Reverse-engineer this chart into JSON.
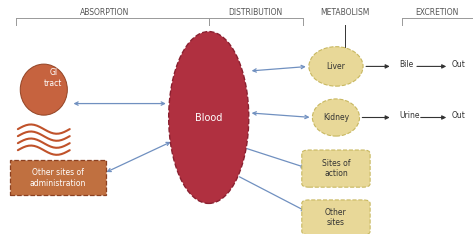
{
  "bg_color": "#ffffff",
  "title_absorption": "ABSORPTION",
  "title_distribution": "DISTRIBUTION",
  "title_metabolism": "METABOLISM",
  "title_excretion": "EXCRETION",
  "blood_color": "#b03040",
  "blood_edge": "#8a2030",
  "blood_text": "Blood",
  "gi_color": "#c0522a",
  "gi_edge": "#8b3a1a",
  "admin_fill": "#c07040",
  "admin_edge": "#8b4020",
  "organ_fill": "#e8d898",
  "organ_edge": "#c8b860",
  "arrow_color": "#7090c0",
  "black_color": "#333333",
  "text_color": "#555555",
  "font_size_hdr": 5.5,
  "font_size_label": 5.5,
  "font_size_blood": 7.0,
  "font_size_organ": 5.5
}
